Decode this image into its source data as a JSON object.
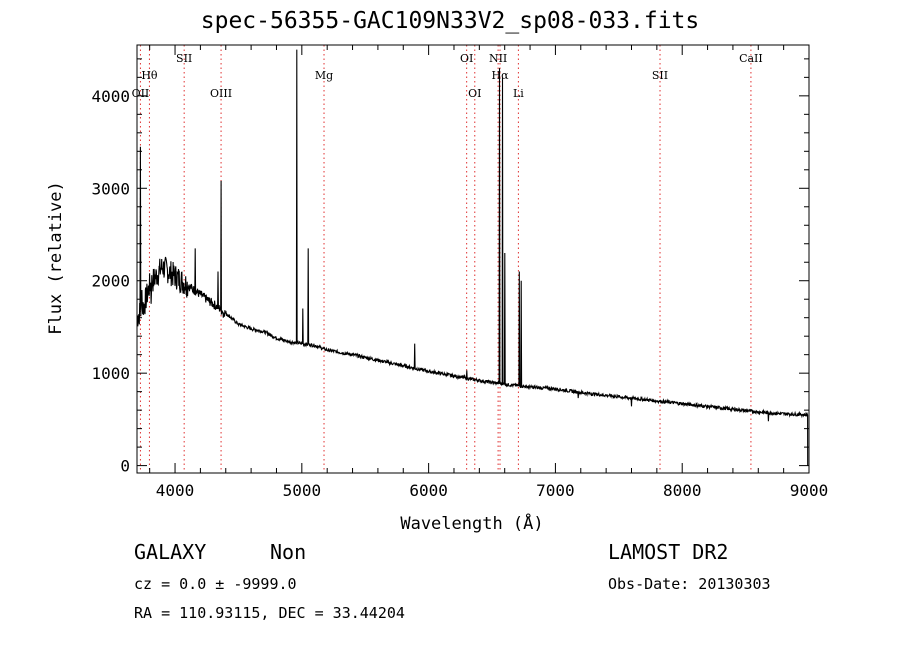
{
  "header": {
    "title": "spec-56355-GAC109N33V2_sp08-033.fits"
  },
  "info": {
    "obj_class": "GALAXY",
    "obj_subclass": "Non",
    "survey": "LAMOST DR2",
    "cz_line": "cz = 0.0 ± -9999.0",
    "obs_date": "Obs-Date: 20130303",
    "radec": "RA = 110.93115, DEC =  33.44204"
  },
  "colors": {
    "line_marker": "#e03030",
    "spectrum": "#000000"
  },
  "chart_data": {
    "type": "line",
    "title": "spec-56355-GAC109N33V2_sp08-033.fits",
    "xlabel": "Wavelength (Å)",
    "ylabel": "Flux (relative)",
    "xlim": [
      3700,
      9000
    ],
    "ylim": [
      -80,
      4550
    ],
    "xticks": [
      4000,
      5000,
      6000,
      7000,
      8000,
      9000
    ],
    "yticks": [
      0,
      1000,
      2000,
      3000,
      4000
    ],
    "grid": false,
    "legend": "none",
    "line_markers": [
      {
        "name": "OII",
        "x": 3727,
        "row": 3
      },
      {
        "name": "Hθ",
        "x": 3798,
        "row": 2
      },
      {
        "name": "SII",
        "x": 4072,
        "row": 0
      },
      {
        "name": "OIII",
        "x": 4363,
        "row": 3
      },
      {
        "name": "Mg",
        "x": 5175,
        "row": 2
      },
      {
        "name": "OI",
        "x": 6300,
        "row": 0
      },
      {
        "name": "OI",
        "x": 6364,
        "row": 3
      },
      {
        "name": "NII",
        "x": 6548,
        "row": 0
      },
      {
        "name": "Hα",
        "x": 6563,
        "row": 2
      },
      {
        "name": "Li",
        "x": 6708,
        "row": 3
      },
      {
        "name": "SII",
        "x": 7825,
        "row": 2
      },
      {
        "name": "CaII",
        "x": 8542,
        "row": 0
      }
    ],
    "continuum": {
      "x": [
        3700,
        3720,
        3760,
        3800,
        3850,
        3900,
        3950,
        4000,
        4050,
        4100,
        4200,
        4300,
        4400,
        4500,
        4600,
        4700,
        4800,
        4900,
        5000,
        5100,
        5200,
        5400,
        5600,
        5800,
        6000,
        6200,
        6400,
        6600,
        6800,
        7000,
        7200,
        7400,
        7600,
        7800,
        8000,
        8200,
        8400,
        8600,
        8800,
        8990
      ],
      "y": [
        1600,
        1650,
        1750,
        1950,
        2050,
        2150,
        2100,
        2050,
        2000,
        1950,
        1850,
        1750,
        1650,
        1530,
        1480,
        1450,
        1380,
        1340,
        1320,
        1300,
        1250,
        1200,
        1140,
        1080,
        1020,
        970,
        920,
        880,
        850,
        830,
        790,
        760,
        730,
        700,
        670,
        640,
        610,
        580,
        560,
        550
      ]
    },
    "emission_lines": [
      {
        "x": 3726,
        "y": 3450
      },
      {
        "x": 3740,
        "y": 1900
      },
      {
        "x": 4160,
        "y": 2350
      },
      {
        "x": 4340,
        "y": 2100
      },
      {
        "x": 4363,
        "y": 3080
      },
      {
        "x": 4959,
        "y": 4500
      },
      {
        "x": 5007,
        "y": 1700
      },
      {
        "x": 5050,
        "y": 2350
      },
      {
        "x": 5890,
        "y": 1320
      },
      {
        "x": 6300,
        "y": 1030
      },
      {
        "x": 6560,
        "y": 4300
      },
      {
        "x": 6584,
        "y": 4200
      },
      {
        "x": 6600,
        "y": 2300
      },
      {
        "x": 6716,
        "y": 2100
      },
      {
        "x": 6731,
        "y": 2000
      }
    ],
    "absorption_lines": [
      {
        "x": 3810,
        "y": 1750
      },
      {
        "x": 4380,
        "y": 1600
      },
      {
        "x": 7180,
        "y": 730
      },
      {
        "x": 7600,
        "y": 640
      },
      {
        "x": 8680,
        "y": 480
      }
    ]
  }
}
